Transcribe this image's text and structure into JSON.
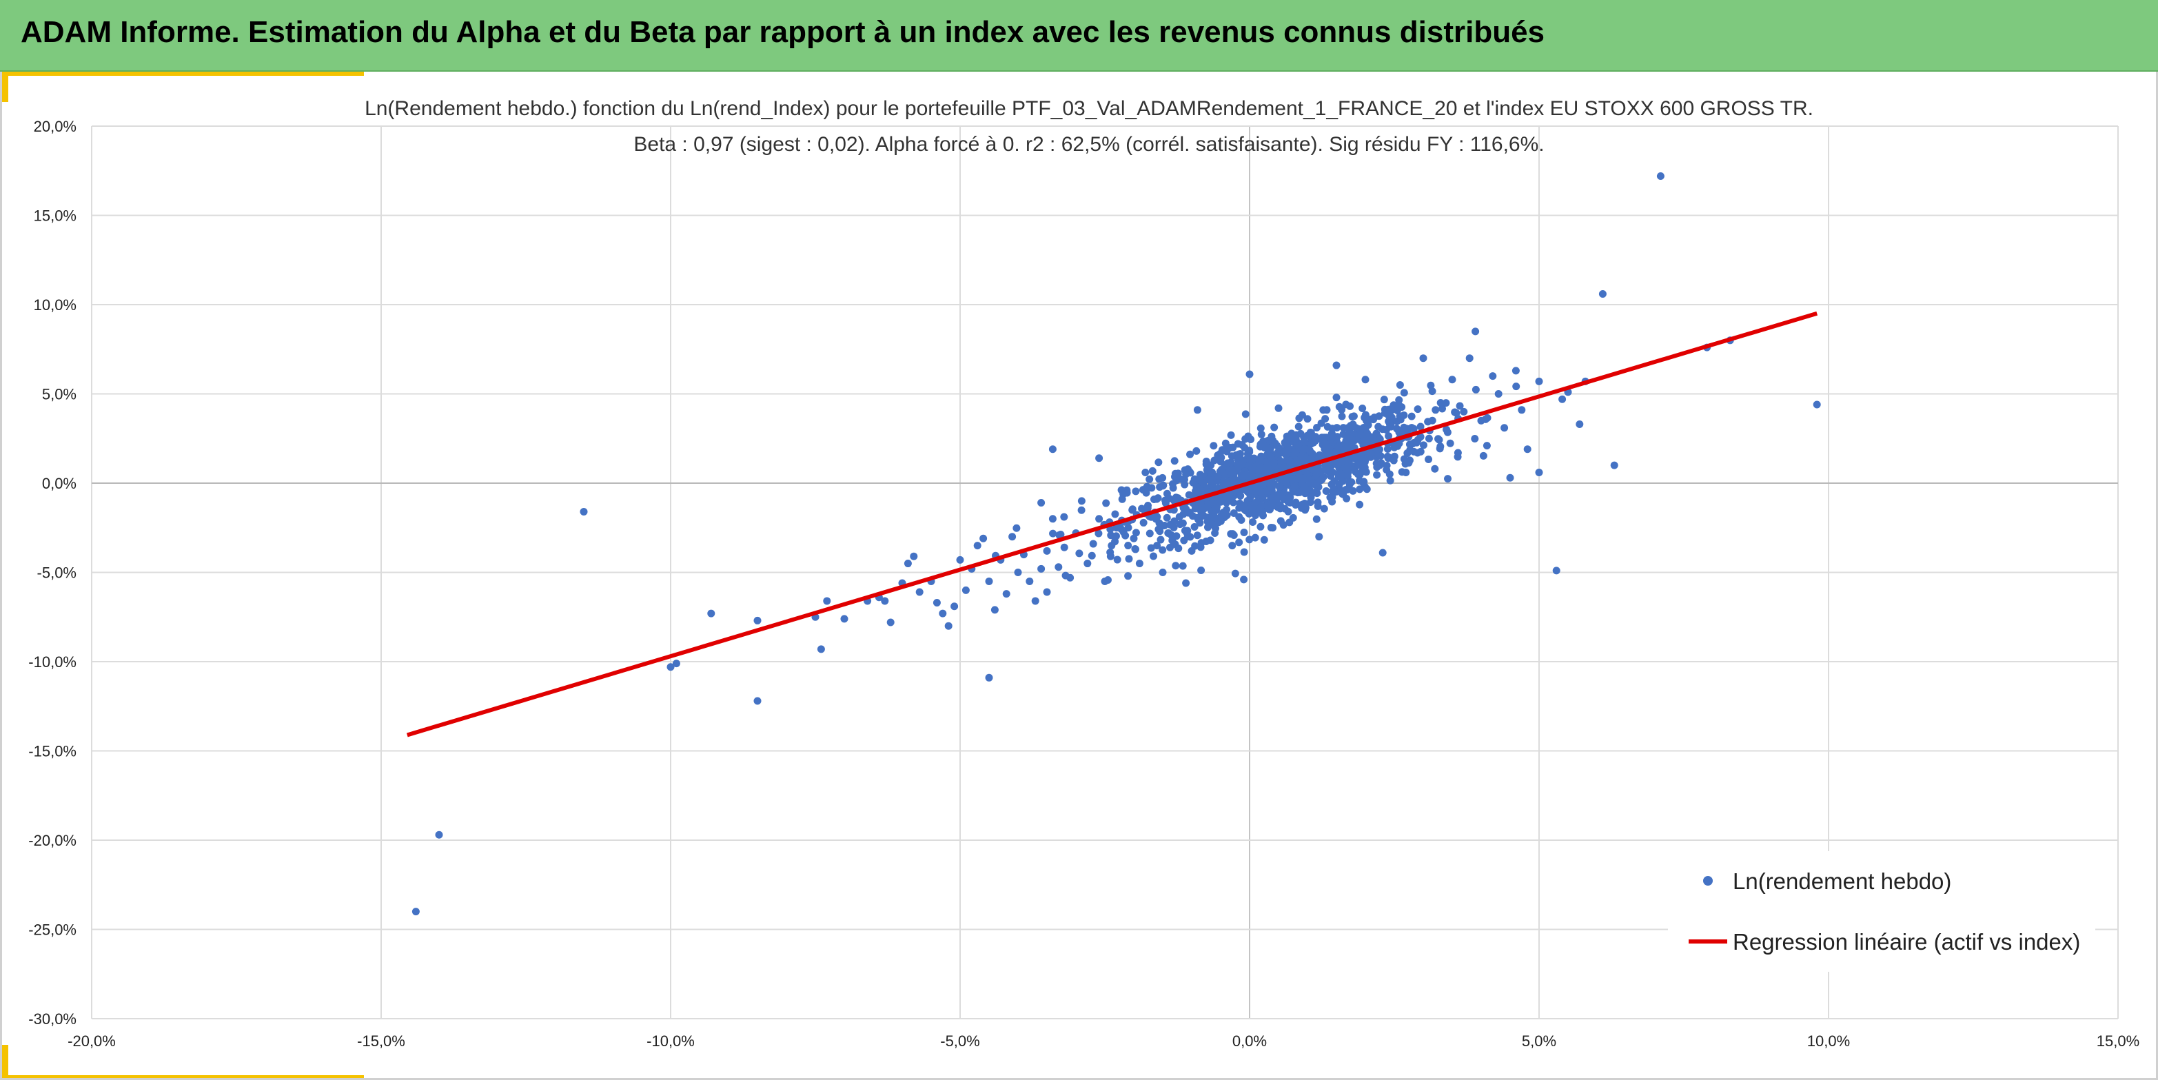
{
  "banner": {
    "title": "ADAM Informe. Estimation du Alpha et du Beta par rapport à un index avec les revenus connus distribués",
    "background": "#7ec97e",
    "accent": "#f5c200"
  },
  "chart_data": {
    "type": "scatter",
    "title": "Ln(Rendement hebdo.) fonction du Ln(rend_Index) pour le portefeuille PTF_03_Val_ADAMRendement_1_FRANCE_20 et l'index EU STOXX 600 GROSS TR.",
    "subtitle": "Beta : 0,97 (sigest : 0,02). Alpha forcé à 0. r2 : 62,5% (corrél. satisfaisante). Sig résidu FY : 116,6%.",
    "xlabel": "",
    "ylabel": "",
    "xlim": [
      -0.2,
      0.15
    ],
    "ylim": [
      -0.3,
      0.2
    ],
    "x_ticks": [
      -0.2,
      -0.15,
      -0.1,
      -0.05,
      0.0,
      0.05,
      0.1,
      0.15
    ],
    "x_tick_labels": [
      "-20,0%",
      "-15,0%",
      "-10,0%",
      "-5,0%",
      "0,0%",
      "5,0%",
      "10,0%",
      "15,0%"
    ],
    "y_ticks": [
      0.2,
      0.15,
      0.1,
      0.05,
      0.0,
      -0.05,
      -0.1,
      -0.15,
      -0.2,
      -0.25,
      -0.3
    ],
    "y_tick_labels": [
      "20,0%",
      "15,0%",
      "10,0%",
      "5,0%",
      "0,0%",
      "-5,0%",
      "-10,0%",
      "-15,0%",
      "-20,0%",
      "-25,0%",
      "-30,0%"
    ],
    "grid": true,
    "legend_position": "bottom-right",
    "series": [
      {
        "name": "Ln(rendement hebdo)",
        "type": "scatter",
        "color": "#4472c4",
        "points": [
          [
            -0.144,
            -0.24
          ],
          [
            -0.14,
            -0.197
          ],
          [
            -0.115,
            -0.016
          ],
          [
            -0.1,
            -0.103
          ],
          [
            -0.099,
            -0.101
          ],
          [
            -0.093,
            -0.073
          ],
          [
            -0.085,
            -0.077
          ],
          [
            -0.085,
            -0.122
          ],
          [
            -0.075,
            -0.075
          ],
          [
            -0.074,
            -0.093
          ],
          [
            -0.073,
            -0.066
          ],
          [
            -0.07,
            -0.076
          ],
          [
            -0.066,
            -0.066
          ],
          [
            -0.064,
            -0.064
          ],
          [
            -0.063,
            -0.066
          ],
          [
            -0.062,
            -0.078
          ],
          [
            -0.06,
            -0.056
          ],
          [
            -0.059,
            -0.045
          ],
          [
            -0.058,
            -0.041
          ],
          [
            -0.057,
            -0.061
          ],
          [
            -0.055,
            -0.055
          ],
          [
            -0.054,
            -0.067
          ],
          [
            -0.053,
            -0.073
          ],
          [
            -0.052,
            -0.08
          ],
          [
            -0.051,
            -0.069
          ],
          [
            -0.05,
            -0.043
          ],
          [
            -0.049,
            -0.06
          ],
          [
            -0.048,
            -0.048
          ],
          [
            -0.047,
            -0.035
          ],
          [
            -0.046,
            -0.031
          ],
          [
            -0.045,
            -0.055
          ],
          [
            -0.045,
            -0.109
          ],
          [
            -0.044,
            -0.071
          ],
          [
            -0.043,
            -0.043
          ],
          [
            -0.042,
            -0.062
          ],
          [
            -0.041,
            -0.03
          ],
          [
            -0.04,
            -0.05
          ],
          [
            -0.039,
            -0.04
          ],
          [
            -0.038,
            -0.055
          ],
          [
            -0.037,
            -0.066
          ],
          [
            -0.036,
            -0.048
          ],
          [
            -0.036,
            -0.011
          ],
          [
            -0.035,
            -0.038
          ],
          [
            -0.035,
            -0.061
          ],
          [
            -0.034,
            -0.02
          ],
          [
            -0.034,
            0.019
          ],
          [
            -0.033,
            -0.047
          ],
          [
            -0.032,
            -0.036
          ],
          [
            -0.031,
            -0.053
          ],
          [
            -0.03,
            -0.028
          ],
          [
            -0.029,
            -0.01
          ],
          [
            -0.028,
            -0.045
          ],
          [
            -0.027,
            -0.034
          ],
          [
            -0.026,
            -0.02
          ],
          [
            -0.026,
            0.014
          ],
          [
            -0.025,
            -0.055
          ],
          [
            -0.024,
            -0.041
          ],
          [
            -0.023,
            -0.025
          ],
          [
            -0.022,
            -0.009
          ],
          [
            -0.021,
            -0.052
          ],
          [
            -0.02,
            -0.031
          ],
          [
            -0.019,
            -0.045
          ],
          [
            -0.018,
            0.006
          ],
          [
            -0.017,
            -0.019
          ],
          [
            -0.016,
            -0.035
          ],
          [
            -0.015,
            -0.05
          ],
          [
            -0.014,
            -0.028
          ],
          [
            -0.013,
            -0.01
          ],
          [
            -0.012,
            -0.023
          ],
          [
            -0.011,
            0.005
          ],
          [
            -0.011,
            -0.056
          ],
          [
            -0.01,
            -0.038
          ],
          [
            -0.009,
            0.041
          ],
          [
            -0.008,
            -0.018
          ],
          [
            -0.007,
            -0.005
          ],
          [
            -0.006,
            -0.028
          ],
          [
            -0.005,
            0.012
          ],
          [
            -0.004,
            -0.011
          ],
          [
            -0.003,
            -0.035
          ],
          [
            -0.002,
            0.022
          ],
          [
            -0.001,
            0.004
          ],
          [
            -0.001,
            -0.054
          ],
          [
            0.0,
            0.061
          ],
          [
            0.001,
            -0.018
          ],
          [
            0.002,
            0.015
          ],
          [
            0.003,
            0.002
          ],
          [
            0.004,
            -0.025
          ],
          [
            0.005,
            0.042
          ],
          [
            0.006,
            0.009
          ],
          [
            0.007,
            -0.008
          ],
          [
            0.008,
            0.025
          ],
          [
            0.009,
            -0.014
          ],
          [
            0.01,
            0.036
          ],
          [
            0.011,
            0.011
          ],
          [
            0.012,
            -0.03
          ],
          [
            0.013,
            0.021
          ],
          [
            0.014,
            0.004
          ],
          [
            0.015,
            0.048
          ],
          [
            0.015,
            0.066
          ],
          [
            0.016,
            -0.006
          ],
          [
            0.017,
            0.031
          ],
          [
            0.018,
            0.014
          ],
          [
            0.019,
            -0.012
          ],
          [
            0.02,
            0.058
          ],
          [
            0.021,
            0.024
          ],
          [
            0.022,
            0.009
          ],
          [
            0.023,
            -0.039
          ],
          [
            0.024,
            0.038
          ],
          [
            0.025,
            0.02
          ],
          [
            0.026,
            0.055
          ],
          [
            0.027,
            0.006
          ],
          [
            0.028,
            0.031
          ],
          [
            0.029,
            0.017
          ],
          [
            0.03,
            0.07
          ],
          [
            0.031,
            0.025
          ],
          [
            0.032,
            0.008
          ],
          [
            0.033,
            0.045
          ],
          [
            0.034,
            0.03
          ],
          [
            0.035,
            0.058
          ],
          [
            0.036,
            0.017
          ],
          [
            0.037,
            0.04
          ],
          [
            0.038,
            0.07
          ],
          [
            0.039,
            0.085
          ],
          [
            0.04,
            0.035
          ],
          [
            0.041,
            0.021
          ],
          [
            0.042,
            0.06
          ],
          [
            0.043,
            0.05
          ],
          [
            0.044,
            0.031
          ],
          [
            0.045,
            0.003
          ],
          [
            0.046,
            0.063
          ],
          [
            0.047,
            0.041
          ],
          [
            0.048,
            0.019
          ],
          [
            0.05,
            0.057
          ],
          [
            0.05,
            0.006
          ],
          [
            0.053,
            -0.049
          ],
          [
            0.054,
            0.047
          ],
          [
            0.055,
            0.051
          ],
          [
            0.057,
            0.033
          ],
          [
            0.058,
            0.057
          ],
          [
            0.061,
            0.106
          ],
          [
            0.063,
            0.01
          ],
          [
            0.071,
            0.172
          ],
          [
            0.079,
            0.076
          ],
          [
            0.083,
            0.08
          ],
          [
            0.098,
            0.044
          ]
        ]
      },
      {
        "name": "Regression linéaire (actif vs index)",
        "type": "line",
        "color": "#e00000",
        "x": [
          -0.1455,
          0.098
        ],
        "y": [
          -0.1411,
          0.0951
        ]
      }
    ],
    "dense_cluster": {
      "center": [
        0.005,
        0.003
      ],
      "spread_x": 0.013,
      "beta": 0.97,
      "residual_sd": 0.012,
      "n": 1200
    }
  }
}
